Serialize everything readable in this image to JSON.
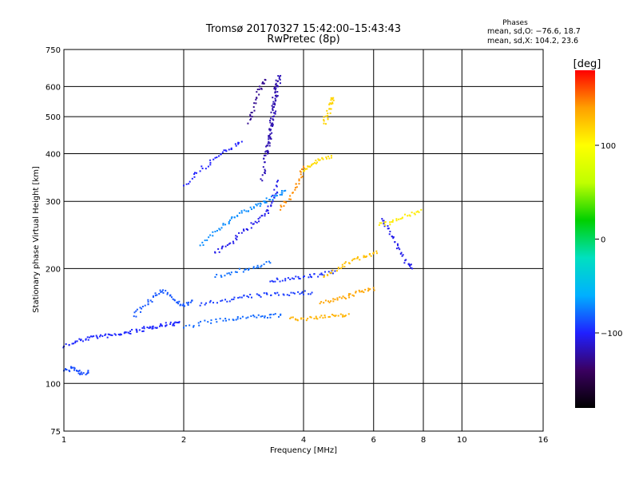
{
  "chart_data": {
    "type": "scatter",
    "title": "Tromsø 20170327 15:42:00–15:43:43",
    "subtitle": "RwPretec (8p)",
    "xlabel": "Frequency [MHz]",
    "ylabel": "Stationary phase Virtual Height [km]",
    "x_scale": "log",
    "y_scale": "log",
    "xlim": [
      1,
      16
    ],
    "ylim": [
      75,
      750
    ],
    "x_ticks": [
      1,
      2,
      4,
      6,
      8,
      10,
      16
    ],
    "x_tick_labels": [
      "1",
      "2",
      "4",
      "6",
      "8",
      "10",
      "16"
    ],
    "y_ticks": [
      75,
      100,
      200,
      300,
      400,
      500,
      600,
      750
    ],
    "y_tick_labels": [
      "75",
      "100",
      "200",
      "300",
      "400",
      "500",
      "600",
      "750"
    ],
    "grid": true,
    "stats": {
      "heading": "Phases",
      "line_o": "mean, sd,O: −76.6, 18.7",
      "line_x": "mean, sd,X: 104.2, 23.6"
    },
    "colorbar": {
      "label": "[deg]",
      "range": [
        -180,
        180
      ],
      "ticks": [
        100,
        0,
        -100
      ],
      "tick_labels": [
        "100",
        "0",
        "−100"
      ],
      "colormap": [
        "#000000",
        "#3a0060",
        "#2020ff",
        "#00b0ff",
        "#00e0c0",
        "#00d000",
        "#c0ff00",
        "#ffff00",
        "#ffa000",
        "#ff0000"
      ]
    },
    "traces": [
      {
        "name": "",
        "phase": -98,
        "points": [
          [
            1.0,
            125
          ],
          [
            1.08,
            129
          ],
          [
            1.16,
            132
          ],
          [
            1.25,
            133
          ],
          [
            1.35,
            134
          ],
          [
            1.45,
            136
          ],
          [
            1.55,
            138
          ],
          [
            1.65,
            140
          ],
          [
            1.75,
            142
          ],
          [
            1.85,
            143
          ],
          [
            1.95,
            145
          ]
        ]
      },
      {
        "name": "",
        "phase": -88,
        "points": [
          [
            1.0,
            108
          ],
          [
            1.05,
            110
          ],
          [
            1.1,
            106
          ],
          [
            1.15,
            107
          ]
        ]
      },
      {
        "name": "",
        "phase": -85,
        "points": [
          [
            1.5,
            150
          ],
          [
            1.6,
            160
          ],
          [
            1.7,
            170
          ],
          [
            1.8,
            175
          ],
          [
            1.9,
            165
          ],
          [
            2.0,
            160
          ],
          [
            2.1,
            165
          ]
        ]
      },
      {
        "name": "",
        "phase": -80,
        "points": [
          [
            2.0,
            140
          ],
          [
            2.3,
            145
          ],
          [
            2.6,
            147
          ],
          [
            2.9,
            149
          ],
          [
            3.2,
            150
          ],
          [
            3.5,
            151
          ]
        ]
      },
      {
        "name": "",
        "phase": -92,
        "points": [
          [
            2.2,
            160
          ],
          [
            2.5,
            165
          ],
          [
            2.8,
            168
          ],
          [
            3.1,
            170
          ],
          [
            3.4,
            172
          ],
          [
            3.8,
            172
          ],
          [
            4.2,
            173
          ]
        ]
      },
      {
        "name": "",
        "phase": -70,
        "points": [
          [
            2.2,
            230
          ],
          [
            2.4,
            250
          ],
          [
            2.6,
            265
          ],
          [
            2.8,
            280
          ],
          [
            3.0,
            290
          ],
          [
            3.2,
            300
          ],
          [
            3.4,
            310
          ],
          [
            3.6,
            320
          ]
        ]
      },
      {
        "name": "",
        "phase": -105,
        "points": [
          [
            2.4,
            220
          ],
          [
            2.6,
            232
          ],
          [
            2.8,
            248
          ],
          [
            3.0,
            262
          ],
          [
            3.2,
            278
          ],
          [
            3.35,
            300
          ],
          [
            3.45,
            340
          ]
        ]
      },
      {
        "name": "",
        "phase": -118,
        "points": [
          [
            3.15,
            340
          ],
          [
            3.2,
            380
          ],
          [
            3.25,
            420
          ],
          [
            3.3,
            460
          ],
          [
            3.35,
            500
          ],
          [
            3.4,
            550
          ],
          [
            3.45,
            600
          ],
          [
            3.5,
            640
          ]
        ]
      },
      {
        "name": "",
        "phase": -122,
        "points": [
          [
            3.25,
            400
          ],
          [
            3.3,
            450
          ],
          [
            3.35,
            520
          ],
          [
            3.4,
            580
          ],
          [
            3.45,
            620
          ]
        ]
      },
      {
        "name": "",
        "phase": -100,
        "points": [
          [
            2.0,
            330
          ],
          [
            2.2,
            360
          ],
          [
            2.4,
            390
          ],
          [
            2.6,
            410
          ],
          [
            2.8,
            430
          ]
        ]
      },
      {
        "name": "",
        "phase": -128,
        "points": [
          [
            2.9,
            480
          ],
          [
            3.0,
            530
          ],
          [
            3.1,
            590
          ],
          [
            3.2,
            625
          ]
        ]
      },
      {
        "name": "",
        "phase": -95,
        "points": [
          [
            3.3,
            185
          ],
          [
            3.6,
            188
          ],
          [
            4.0,
            190
          ],
          [
            4.4,
            193
          ],
          [
            4.8,
            197
          ]
        ]
      },
      {
        "name": "",
        "phase": -78,
        "points": [
          [
            2.4,
            190
          ],
          [
            2.7,
            196
          ],
          [
            3.0,
            202
          ],
          [
            3.3,
            207
          ]
        ]
      },
      {
        "name": "",
        "phase": 145,
        "points": [
          [
            3.5,
            285
          ],
          [
            3.7,
            310
          ],
          [
            3.9,
            340
          ],
          [
            4.0,
            370
          ]
        ]
      },
      {
        "name": "",
        "phase": 115,
        "points": [
          [
            4.0,
            360
          ],
          [
            4.2,
            375
          ],
          [
            4.4,
            385
          ],
          [
            4.7,
            395
          ]
        ]
      },
      {
        "name": "",
        "phase": 132,
        "points": [
          [
            3.7,
            148
          ],
          [
            4.0,
            148
          ],
          [
            4.4,
            149
          ],
          [
            4.8,
            150
          ],
          [
            5.2,
            152
          ]
        ]
      },
      {
        "name": "",
        "phase": 138,
        "points": [
          [
            4.4,
            162
          ],
          [
            4.8,
            166
          ],
          [
            5.2,
            170
          ],
          [
            5.6,
            174
          ],
          [
            6.0,
            178
          ]
        ]
      },
      {
        "name": "",
        "phase": 127,
        "points": [
          [
            4.5,
            190
          ],
          [
            4.9,
            200
          ],
          [
            5.3,
            210
          ],
          [
            5.7,
            215
          ],
          [
            6.1,
            222
          ]
        ]
      },
      {
        "name": "",
        "phase": 118,
        "points": [
          [
            4.5,
            480
          ],
          [
            4.6,
            510
          ],
          [
            4.7,
            540
          ],
          [
            4.75,
            560
          ]
        ]
      },
      {
        "name": "",
        "phase": -105,
        "points": [
          [
            6.3,
            270
          ],
          [
            6.6,
            250
          ],
          [
            6.9,
            230
          ],
          [
            7.2,
            210
          ],
          [
            7.5,
            200
          ]
        ]
      },
      {
        "name": "",
        "phase": 108,
        "points": [
          [
            6.2,
            260
          ],
          [
            6.7,
            265
          ],
          [
            7.3,
            275
          ],
          [
            7.9,
            285
          ]
        ]
      }
    ]
  }
}
